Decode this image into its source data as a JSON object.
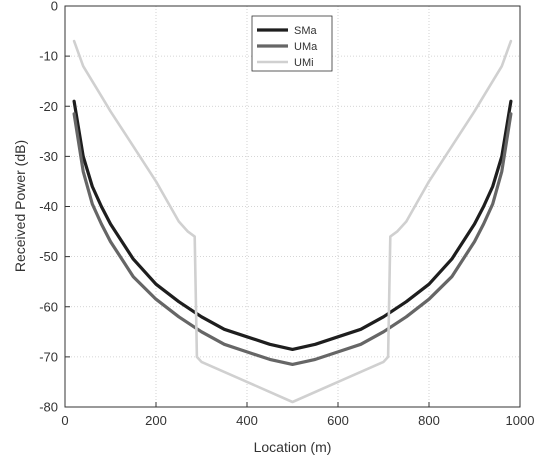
{
  "chart_data": {
    "type": "line",
    "title": "",
    "xlabel": "Location (m)",
    "ylabel": "Received Power (dB)",
    "xlim": [
      0,
      1000
    ],
    "ylim": [
      -80,
      0
    ],
    "x_ticks": [
      "0",
      "200",
      "400",
      "600",
      "800",
      "1000"
    ],
    "y_ticks": [
      "0",
      "-10",
      "-20",
      "-30",
      "-40",
      "-50",
      "-60",
      "-70",
      "-80"
    ],
    "grid": true,
    "legend_position": "top-center",
    "series": [
      {
        "name": "SMa",
        "color": "#1e1e1e",
        "x": [
          20,
          40,
          60,
          80,
          100,
          150,
          200,
          250,
          300,
          350,
          400,
          450,
          500,
          550,
          600,
          650,
          700,
          750,
          800,
          850,
          900,
          920,
          940,
          960,
          980
        ],
        "y": [
          -19,
          -30,
          -36,
          -40,
          -43.5,
          -50.5,
          -55.5,
          -59,
          -62,
          -64.5,
          -66,
          -67.5,
          -68.5,
          -67.5,
          -66,
          -64.5,
          -62,
          -59,
          -55.5,
          -50.5,
          -43.5,
          -40,
          -36,
          -30,
          -19
        ]
      },
      {
        "name": "UMa",
        "color": "#666666",
        "x": [
          20,
          40,
          60,
          80,
          100,
          150,
          200,
          250,
          300,
          350,
          400,
          450,
          500,
          550,
          600,
          650,
          700,
          750,
          800,
          850,
          900,
          920,
          940,
          960,
          980
        ],
        "y": [
          -21.5,
          -33,
          -39.5,
          -43.5,
          -47,
          -54,
          -58.5,
          -62,
          -65,
          -67.5,
          -69,
          -70.5,
          -71.5,
          -70.5,
          -69,
          -67.5,
          -65,
          -62,
          -58.5,
          -54,
          -47,
          -43.5,
          -39.5,
          -33,
          -21.5
        ]
      },
      {
        "name": "UMi",
        "color": "#d0d0d0",
        "x": [
          20,
          40,
          60,
          80,
          100,
          150,
          200,
          250,
          270,
          285,
          290,
          300,
          400,
          500,
          600,
          700,
          710,
          715,
          730,
          750,
          800,
          850,
          900,
          920,
          940,
          960,
          980
        ],
        "y": [
          -7,
          -12,
          -15,
          -18,
          -21,
          -28,
          -35,
          -43,
          -45,
          -46,
          -70,
          -71,
          -75,
          -79,
          -75,
          -71,
          -70,
          -46,
          -45,
          -43,
          -35,
          -28,
          -21,
          -18,
          -15,
          -12,
          -7
        ]
      }
    ]
  }
}
